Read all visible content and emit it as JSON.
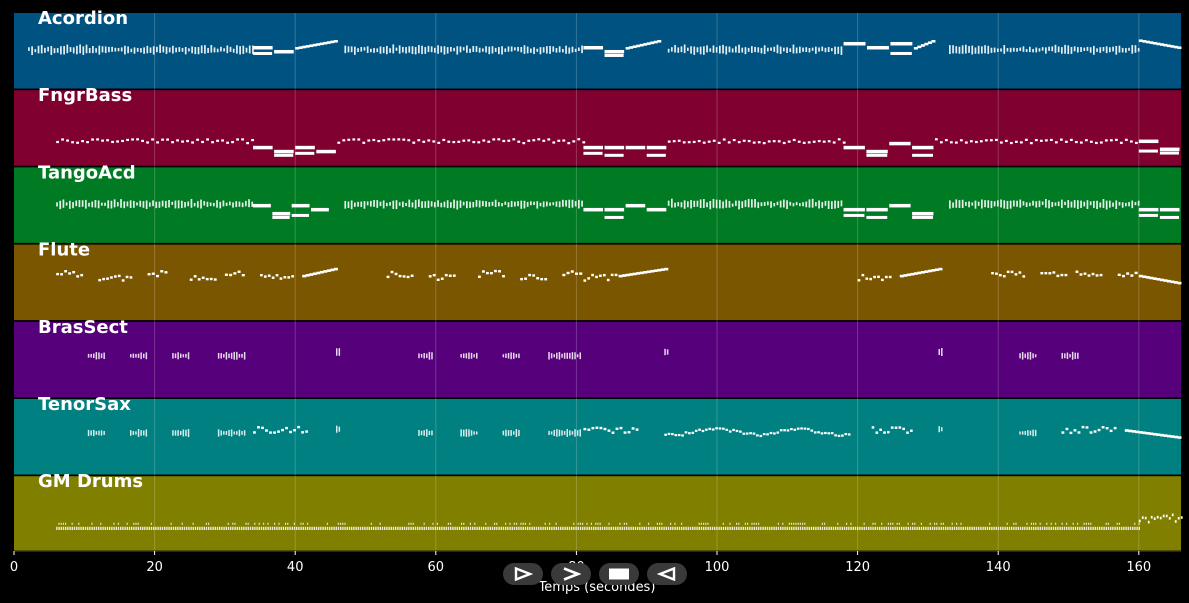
{
  "chart_data": {
    "type": "piano-roll",
    "title": "",
    "xlabel": "Temps (secondes)",
    "ylabel": "",
    "xlim": [
      0,
      166
    ],
    "x_ticks": [
      0,
      20,
      40,
      60,
      80,
      100,
      120,
      140,
      160
    ],
    "grid": true,
    "tracks": [
      {
        "name": "Acordion",
        "color": "#005380",
        "note_style": "dense",
        "segments": [
          {
            "start": 2,
            "end": 34,
            "pattern": "dense",
            "pitch": 0.5
          },
          {
            "start": 34,
            "end": 40,
            "pattern": "sustain",
            "pitch": 0.45
          },
          {
            "start": 40,
            "end": 46,
            "pattern": "run-up",
            "pitch": 0.45
          },
          {
            "start": 47,
            "end": 81,
            "pattern": "dense",
            "pitch": 0.5
          },
          {
            "start": 81,
            "end": 87,
            "pattern": "sustain",
            "pitch": 0.45
          },
          {
            "start": 87,
            "end": 92,
            "pattern": "run-up",
            "pitch": 0.45
          },
          {
            "start": 93,
            "end": 118,
            "pattern": "dense",
            "pitch": 0.5
          },
          {
            "start": 118,
            "end": 128,
            "pattern": "sustain",
            "pitch": 0.45
          },
          {
            "start": 128,
            "end": 131,
            "pattern": "run-up",
            "pitch": 0.45
          },
          {
            "start": 133,
            "end": 160,
            "pattern": "dense",
            "pitch": 0.5
          },
          {
            "start": 160,
            "end": 166,
            "pattern": "run-down",
            "pitch": 0.35
          }
        ]
      },
      {
        "name": "FngrBass",
        "color": "#800030",
        "note_style": "sparse",
        "segments": [
          {
            "start": 6,
            "end": 34,
            "pattern": "bass",
            "pitch": 0.7
          },
          {
            "start": 34,
            "end": 46,
            "pattern": "sustain",
            "pitch": 0.75
          },
          {
            "start": 46,
            "end": 81,
            "pattern": "bass",
            "pitch": 0.7
          },
          {
            "start": 81,
            "end": 93,
            "pattern": "sustain",
            "pitch": 0.75
          },
          {
            "start": 93,
            "end": 118,
            "pattern": "bass",
            "pitch": 0.7
          },
          {
            "start": 118,
            "end": 131,
            "pattern": "sustain",
            "pitch": 0.75
          },
          {
            "start": 131,
            "end": 160,
            "pattern": "bass",
            "pitch": 0.7
          },
          {
            "start": 160,
            "end": 166,
            "pattern": "sustain",
            "pitch": 0.72
          }
        ]
      },
      {
        "name": "TangoAcd",
        "color": "#007b23",
        "note_style": "dense",
        "segments": [
          {
            "start": 6,
            "end": 34,
            "pattern": "dense",
            "pitch": 0.5
          },
          {
            "start": 34,
            "end": 45,
            "pattern": "sustain",
            "pitch": 0.55
          },
          {
            "start": 47,
            "end": 81,
            "pattern": "dense",
            "pitch": 0.5
          },
          {
            "start": 81,
            "end": 93,
            "pattern": "sustain",
            "pitch": 0.55
          },
          {
            "start": 93,
            "end": 118,
            "pattern": "dense",
            "pitch": 0.5
          },
          {
            "start": 118,
            "end": 131,
            "pattern": "sustain",
            "pitch": 0.55
          },
          {
            "start": 133,
            "end": 160,
            "pattern": "dense",
            "pitch": 0.5
          },
          {
            "start": 160,
            "end": 166,
            "pattern": "sustain",
            "pitch": 0.55
          }
        ]
      },
      {
        "name": "Flute",
        "color": "#7b5600",
        "note_style": "phrases",
        "segments": [
          {
            "start": 6,
            "end": 10,
            "pattern": "phrase",
            "pitch": 0.4
          },
          {
            "start": 12,
            "end": 17,
            "pattern": "phrase",
            "pitch": 0.45
          },
          {
            "start": 19,
            "end": 22,
            "pattern": "phrase",
            "pitch": 0.4
          },
          {
            "start": 25,
            "end": 29,
            "pattern": "phrase",
            "pitch": 0.45
          },
          {
            "start": 30,
            "end": 33,
            "pattern": "phrase",
            "pitch": 0.4
          },
          {
            "start": 35,
            "end": 40,
            "pattern": "phrase",
            "pitch": 0.45
          },
          {
            "start": 41,
            "end": 46,
            "pattern": "run-up",
            "pitch": 0.4
          },
          {
            "start": 53,
            "end": 57,
            "pattern": "phrase",
            "pitch": 0.4
          },
          {
            "start": 59,
            "end": 63,
            "pattern": "phrase",
            "pitch": 0.45
          },
          {
            "start": 66,
            "end": 70,
            "pattern": "phrase",
            "pitch": 0.4
          },
          {
            "start": 72,
            "end": 76,
            "pattern": "phrase",
            "pitch": 0.45
          },
          {
            "start": 78,
            "end": 81,
            "pattern": "phrase",
            "pitch": 0.4
          },
          {
            "start": 81,
            "end": 86,
            "pattern": "phrase",
            "pitch": 0.45
          },
          {
            "start": 86,
            "end": 93,
            "pattern": "run-up",
            "pitch": 0.4
          },
          {
            "start": 120,
            "end": 125,
            "pattern": "phrase",
            "pitch": 0.45
          },
          {
            "start": 126,
            "end": 132,
            "pattern": "run-up",
            "pitch": 0.4
          },
          {
            "start": 139,
            "end": 144,
            "pattern": "phrase",
            "pitch": 0.4
          },
          {
            "start": 146,
            "end": 150,
            "pattern": "phrase",
            "pitch": 0.4
          },
          {
            "start": 151,
            "end": 155,
            "pattern": "phrase",
            "pitch": 0.4
          },
          {
            "start": 157,
            "end": 160,
            "pattern": "phrase",
            "pitch": 0.4
          },
          {
            "start": 160,
            "end": 166,
            "pattern": "run-down",
            "pitch": 0.4
          }
        ]
      },
      {
        "name": "BrasSect",
        "color": "#56007b",
        "note_style": "stabs",
        "segments": [
          {
            "start": 10.5,
            "end": 13,
            "pattern": "stab",
            "pitch": 0.45
          },
          {
            "start": 16.5,
            "end": 19,
            "pattern": "stab",
            "pitch": 0.45
          },
          {
            "start": 22.5,
            "end": 25,
            "pattern": "stab",
            "pitch": 0.45
          },
          {
            "start": 29,
            "end": 33,
            "pattern": "stab",
            "pitch": 0.45
          },
          {
            "start": 45.8,
            "end": 46.5,
            "pattern": "stab",
            "pitch": 0.4
          },
          {
            "start": 57.5,
            "end": 59.5,
            "pattern": "stab",
            "pitch": 0.45
          },
          {
            "start": 63.5,
            "end": 66,
            "pattern": "stab",
            "pitch": 0.45
          },
          {
            "start": 69.5,
            "end": 72,
            "pattern": "stab",
            "pitch": 0.45
          },
          {
            "start": 76,
            "end": 80.5,
            "pattern": "stab",
            "pitch": 0.45
          },
          {
            "start": 92.5,
            "end": 93.2,
            "pattern": "stab",
            "pitch": 0.4
          },
          {
            "start": 131.5,
            "end": 132,
            "pattern": "stab",
            "pitch": 0.4
          },
          {
            "start": 143,
            "end": 145.5,
            "pattern": "stab",
            "pitch": 0.45
          },
          {
            "start": 149,
            "end": 151.5,
            "pattern": "stab",
            "pitch": 0.45
          }
        ]
      },
      {
        "name": "TenorSax",
        "color": "#008080",
        "note_style": "stabs",
        "segments": [
          {
            "start": 10.5,
            "end": 13,
            "pattern": "stab",
            "pitch": 0.45
          },
          {
            "start": 16.5,
            "end": 19,
            "pattern": "stab",
            "pitch": 0.45
          },
          {
            "start": 22.5,
            "end": 25,
            "pattern": "stab",
            "pitch": 0.45
          },
          {
            "start": 29,
            "end": 33,
            "pattern": "stab",
            "pitch": 0.45
          },
          {
            "start": 34,
            "end": 42,
            "pattern": "phrase",
            "pitch": 0.42
          },
          {
            "start": 45.8,
            "end": 46.5,
            "pattern": "stab",
            "pitch": 0.4
          },
          {
            "start": 57.5,
            "end": 59.5,
            "pattern": "stab",
            "pitch": 0.45
          },
          {
            "start": 63.5,
            "end": 66,
            "pattern": "stab",
            "pitch": 0.45
          },
          {
            "start": 69.5,
            "end": 72,
            "pattern": "stab",
            "pitch": 0.45
          },
          {
            "start": 76,
            "end": 80.5,
            "pattern": "stab",
            "pitch": 0.45
          },
          {
            "start": 81,
            "end": 89,
            "pattern": "phrase",
            "pitch": 0.42
          },
          {
            "start": 92.5,
            "end": 119,
            "pattern": "melody",
            "pitch": 0.42
          },
          {
            "start": 122,
            "end": 128,
            "pattern": "phrase",
            "pitch": 0.42
          },
          {
            "start": 131.5,
            "end": 132,
            "pattern": "stab",
            "pitch": 0.4
          },
          {
            "start": 143,
            "end": 145.5,
            "pattern": "stab",
            "pitch": 0.45
          },
          {
            "start": 149,
            "end": 157,
            "pattern": "phrase",
            "pitch": 0.42
          },
          {
            "start": 158,
            "end": 166,
            "pattern": "run-down",
            "pitch": 0.4
          }
        ]
      },
      {
        "name": "GM Drums",
        "color": "#807f00",
        "note_style": "drums",
        "segments": [
          {
            "start": 6,
            "end": 160,
            "pattern": "drums",
            "pitch": 0.67
          },
          {
            "start": 160,
            "end": 166,
            "pattern": "fill",
            "pitch": 0.6
          }
        ]
      }
    ]
  },
  "controls": {
    "play_symbol": "⊳",
    "forward_symbol": ">",
    "stop_symbol": "■",
    "back_symbol": "⊲"
  }
}
